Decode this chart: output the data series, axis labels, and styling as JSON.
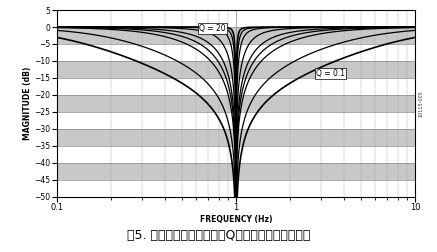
{
  "title": "",
  "xlabel": "FREQUENCY (Hz)",
  "ylabel": "MAGNITUDE (dB)",
  "xlim": [
    0.1,
    10
  ],
  "ylim": [
    -50,
    5
  ],
  "yticks": [
    5,
    0,
    -5,
    -10,
    -15,
    -20,
    -25,
    -30,
    -35,
    -40,
    -45,
    -50
  ],
  "Q_values": [
    0.1,
    0.2,
    0.5,
    0.707,
    1.0,
    2.0,
    5.0,
    10.0,
    20.0
  ],
  "f0": 1.0,
  "annotation_Q20": "Q = 20",
  "annotation_Q01": "Q = 0.1",
  "line_color": "#000000",
  "bg_color": "#ffffff",
  "grid_major_color": "#aaaaaa",
  "grid_minor_color": "#cccccc",
  "gray_band_color": "#cccccc",
  "caption": "图5. 陷波滤波器宽度与各种Q值下的频率之间的关系",
  "watermark": "10115-005"
}
